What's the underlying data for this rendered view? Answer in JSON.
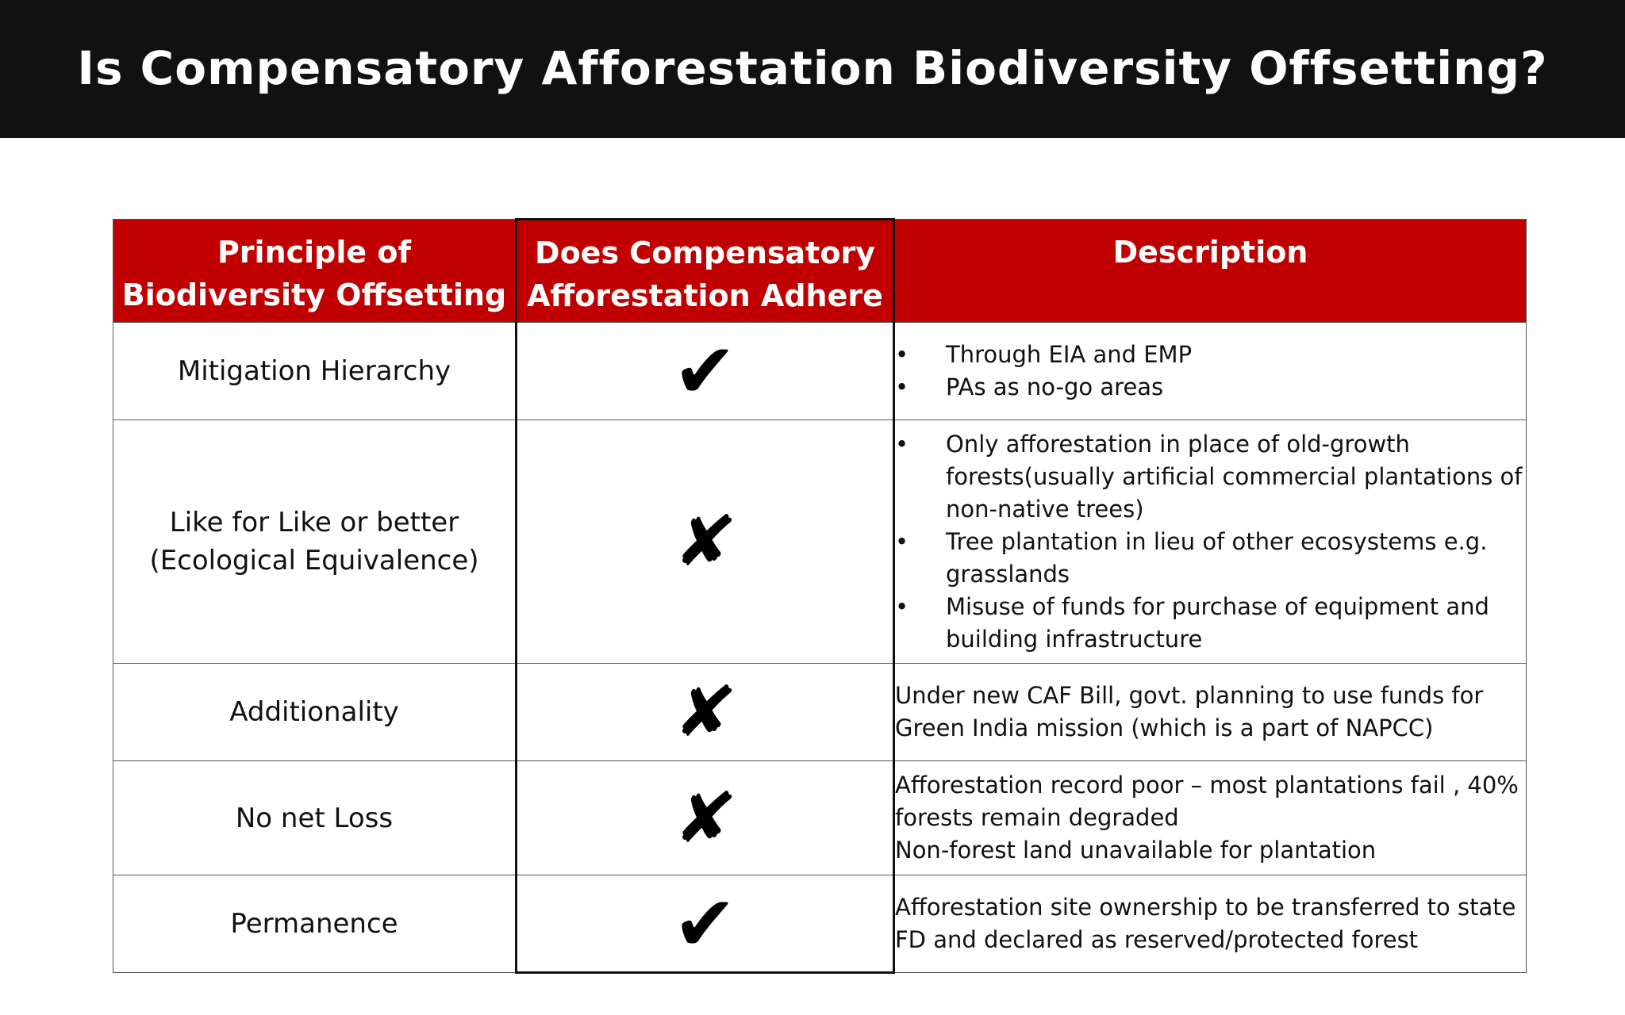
{
  "title": "Is Compensatory Afforestation Biodiversity Offsetting?",
  "colors": {
    "title_bar": "#111111",
    "header_fill": "#c00000",
    "header_text": "#ffffff"
  },
  "headers": {
    "principle": "Principle of Biodiversity Offsetting",
    "adherence": "Does Compensatory Afforestation  Adhere",
    "description": "Description"
  },
  "icons": {
    "yes": "check-mark",
    "no": "cross-mark",
    "yes_glyph": "✔",
    "no_glyph": "✘"
  },
  "rows": [
    {
      "principle": "Mitigation Hierarchy",
      "adheres": "yes",
      "description_type": "bullets",
      "description": [
        "Through EIA and EMP",
        "PAs as no-go areas"
      ]
    },
    {
      "principle": "Like for Like or better (Ecological Equivalence)",
      "adheres": "no",
      "description_type": "bullets",
      "description": [
        "Only afforestation  in place of old-growth forests(usually artificial commercial plantations of non-native trees)",
        "Tree plantation in lieu of other ecosystems e.g. grasslands",
        "Misuse of funds for purchase of equipment and building infrastructure"
      ]
    },
    {
      "principle": "Additionality",
      "adheres": "no",
      "description_type": "text",
      "description": [
        "Under new CAF Bill, govt. planning to use funds for Green India mission (which is a part of NAPCC)"
      ]
    },
    {
      "principle": "No net Loss",
      "adheres": "no",
      "description_type": "text",
      "description": [
        "Afforestation record poor – most plantations fail , 40% forests remain degraded",
        "Non-forest land unavailable for plantation"
      ]
    },
    {
      "principle": "Permanence",
      "adheres": "yes",
      "description_type": "text",
      "description": [
        "Afforestation site ownership to be transferred to state FD and declared as reserved/protected forest"
      ]
    }
  ]
}
